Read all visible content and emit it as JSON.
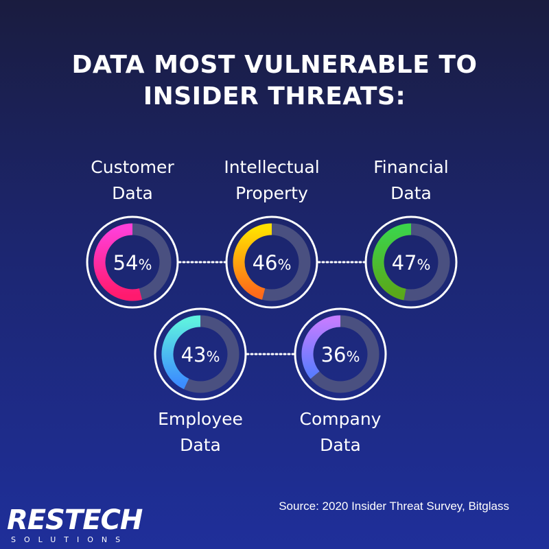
{
  "title": {
    "line1": "DATA MOST VULNERABLE TO",
    "line2": "INSIDER THREATS:"
  },
  "chart_data": {
    "type": "donut",
    "max": 100,
    "unit": "%",
    "items": [
      {
        "label_lines": [
          "Customer",
          "Data"
        ],
        "value": 54,
        "colors": [
          "#ff3fd8",
          "#ff1a6e"
        ]
      },
      {
        "label_lines": [
          "Intellectual",
          "Property"
        ],
        "value": 46,
        "colors": [
          "#ffe000",
          "#ff6a1a"
        ]
      },
      {
        "label_lines": [
          "Financial",
          "Data"
        ],
        "value": 47,
        "colors": [
          "#3cd34a",
          "#5aa81a"
        ]
      },
      {
        "label_lines": [
          "Employee",
          "Data"
        ],
        "value": 43,
        "colors": [
          "#5ef0e0",
          "#3c8cff"
        ]
      },
      {
        "label_lines": [
          "Company",
          "Data"
        ],
        "value": 36,
        "colors": [
          "#c27cff",
          "#5a7cff"
        ]
      }
    ],
    "track_color": "#4a5080",
    "ring_color": "#ffffff"
  },
  "source": "Source: 2020 Insider Threat Survey, Bitglass",
  "logo": {
    "main": "RESTECH",
    "sub": "SOLUTIONS"
  }
}
